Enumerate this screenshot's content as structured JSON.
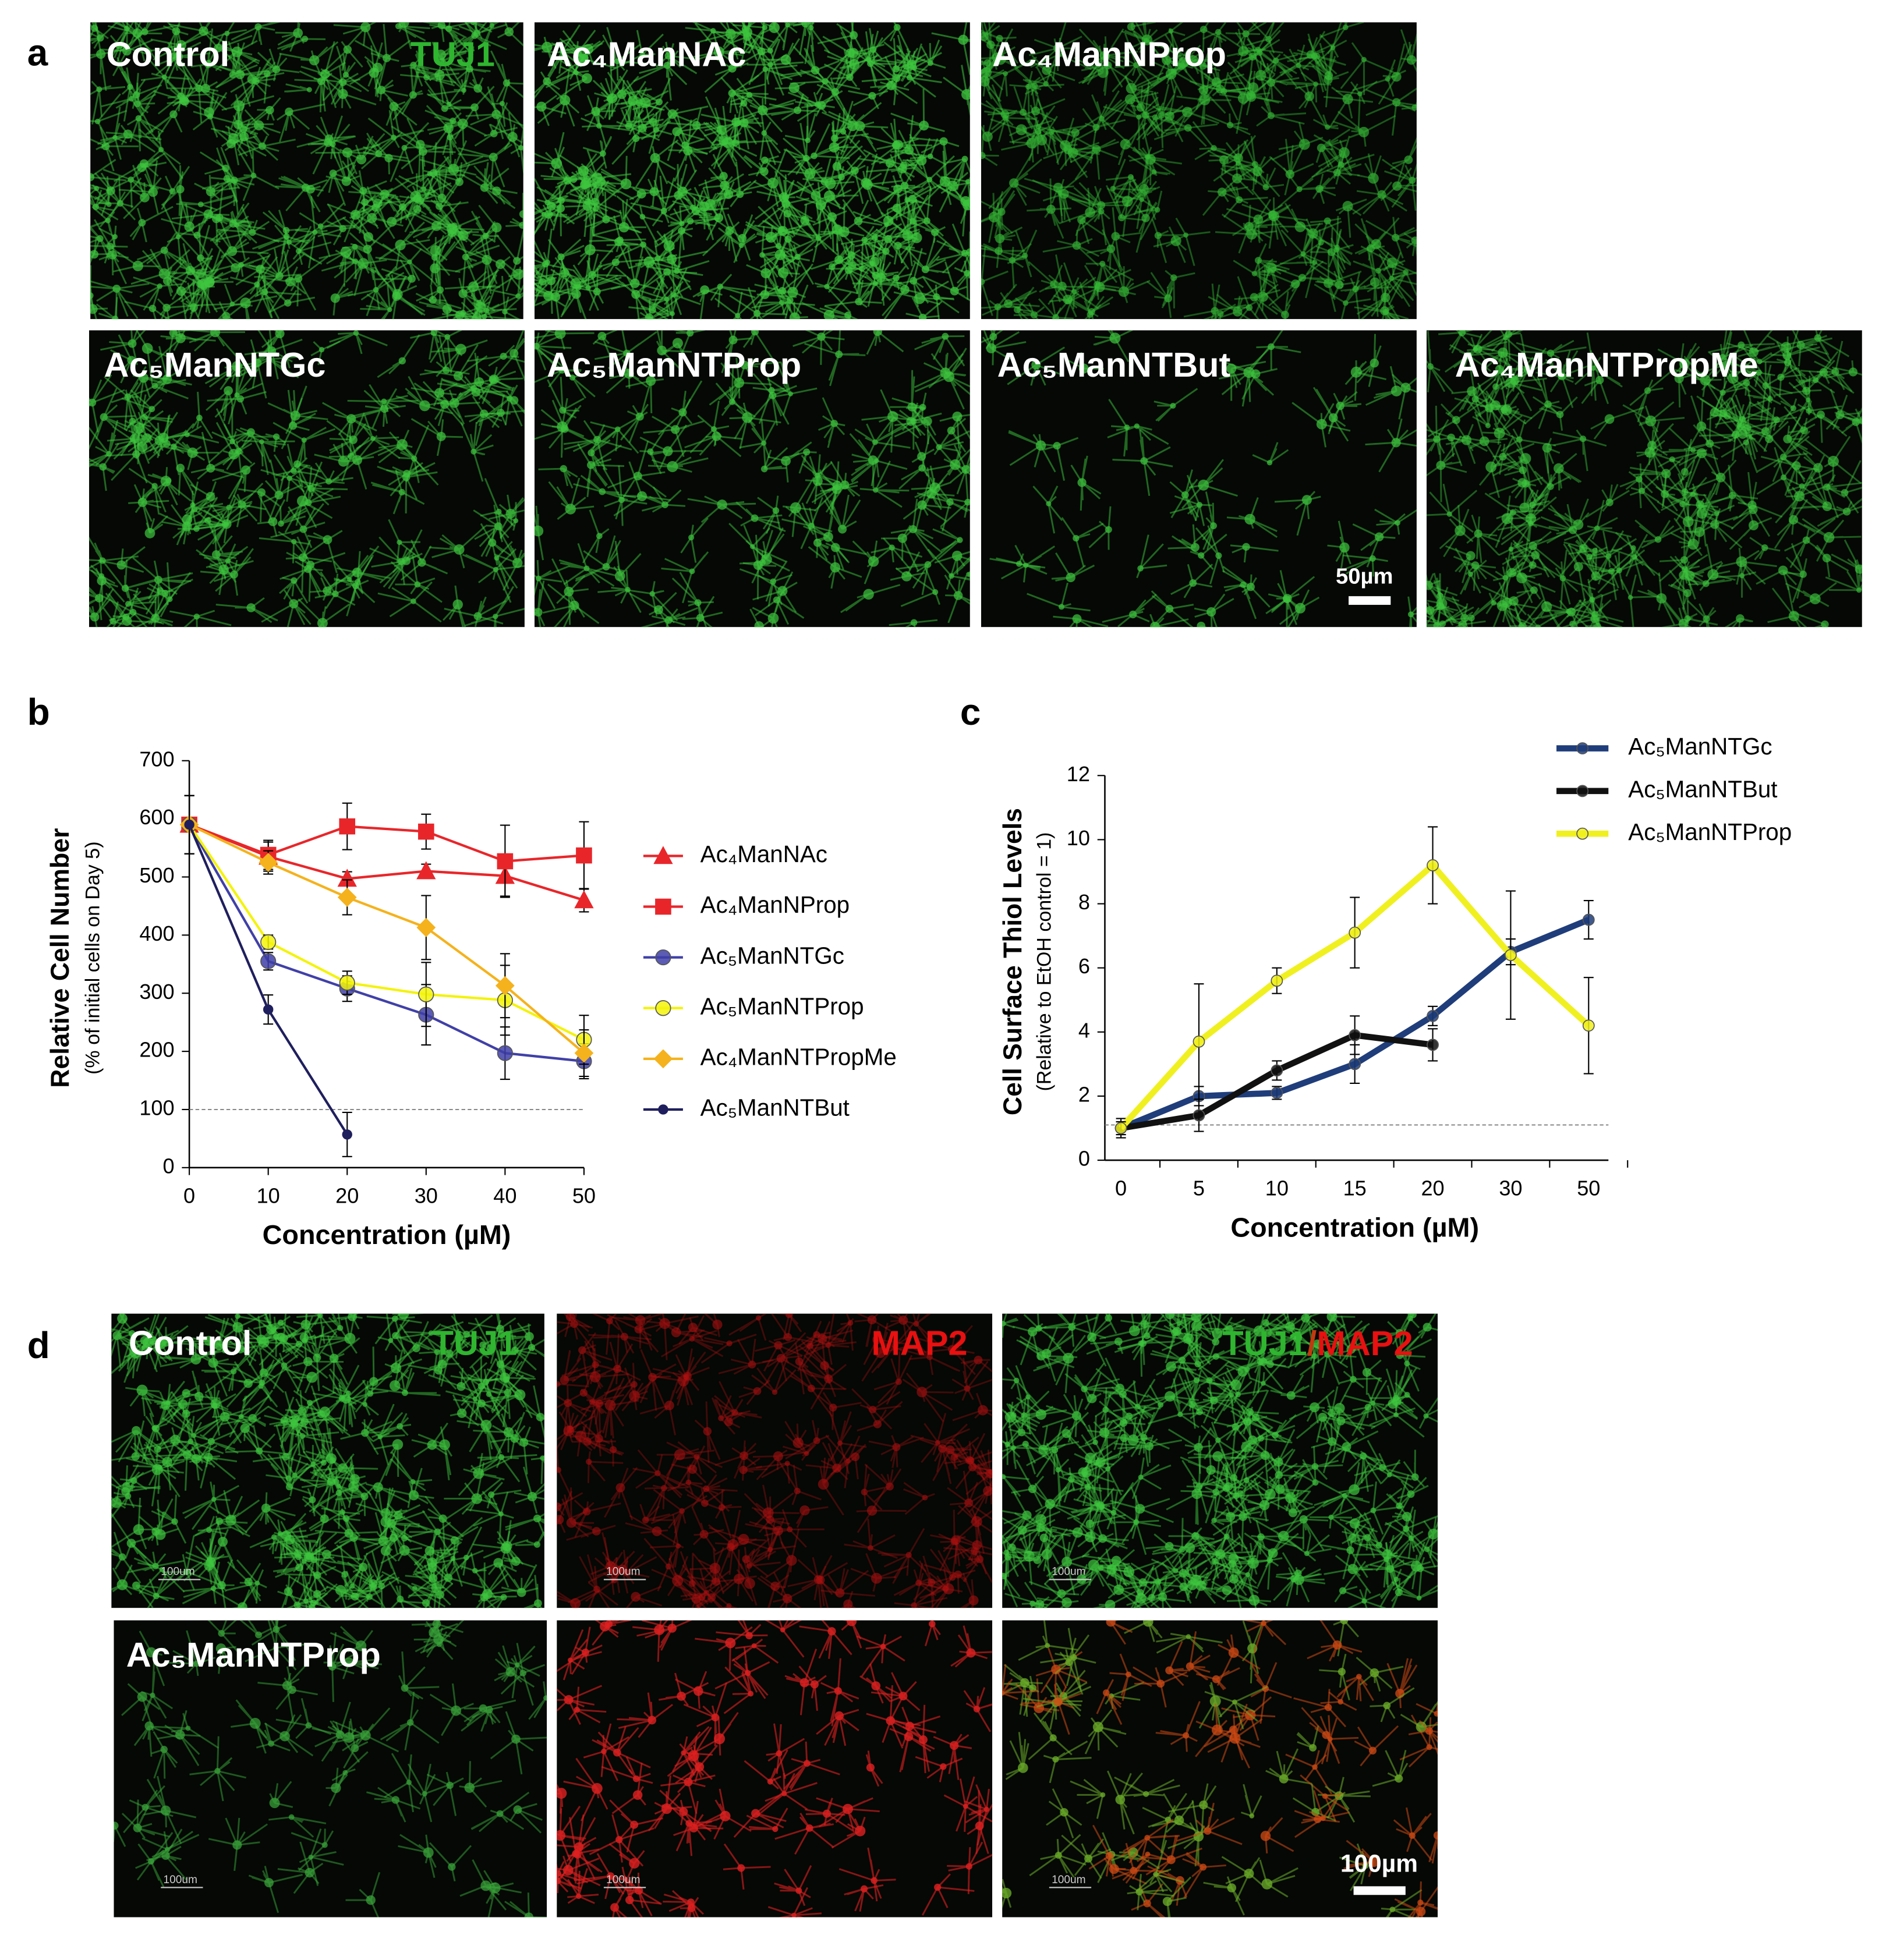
{
  "panel_labels": [
    "a",
    "b",
    "c",
    "d"
  ],
  "panel_a": {
    "labels": [
      "Control",
      "Ac₄ManNAc",
      "Ac₄ManNProp",
      "Ac₅ManNTGc",
      "Ac₅ManNTProp",
      "Ac₅ManNTBut",
      "Ac₄ManNTPropMe"
    ],
    "stain": "TUJ1",
    "scale_bar": "50µm"
  },
  "panel_d": {
    "row_labels": [
      "Control",
      "Ac₅ManNTProp"
    ],
    "stains": [
      "TUJ1",
      "MAP2"
    ],
    "merge": [
      "TUJ1",
      "/",
      "MAP2"
    ],
    "small_scale_labels": [
      "100um",
      "100um",
      "100um",
      "100um",
      "100um",
      "100um"
    ],
    "scale_bar": "100µm"
  },
  "chart_data": [
    {
      "type": "line",
      "y_label": "Relative Cell Number",
      "y_sublabel": "(% of initial cells on Day 5)",
      "x_label": "Concentration (µM)",
      "x": [
        0,
        10,
        20,
        30,
        40,
        50
      ],
      "xlim": [
        0,
        50
      ],
      "xticks": [
        0,
        10,
        20,
        30,
        40,
        50
      ],
      "ylim": [
        0,
        700
      ],
      "yticks": [
        0,
        100,
        200,
        300,
        400,
        500,
        600,
        700
      ],
      "reference_line": 100,
      "series": [
        {
          "name": "Ac₄ManNAc",
          "color": "#e8262a",
          "marker": "triangle",
          "values": [
            590,
            535,
            497,
            510,
            502,
            460
          ],
          "errors": [
            50,
            25,
            12,
            12,
            35,
            20
          ]
        },
        {
          "name": "Ac₄ManNProp",
          "color": "#e8262a",
          "marker": "square",
          "values": [
            590,
            538,
            587,
            578,
            527,
            537
          ],
          "errors": [
            50,
            25,
            40,
            30,
            62,
            58
          ]
        },
        {
          "name": "Ac₅ManNTGc",
          "color": "#4040a8",
          "marker": "circle",
          "values": [
            590,
            355,
            308,
            263,
            197,
            183
          ],
          "errors": [
            50,
            15,
            22,
            52,
            45,
            30
          ]
        },
        {
          "name": "Ac₅ManNTProp",
          "color": "#f3f30c",
          "marker": "circle",
          "values": [
            590,
            388,
            318,
            298,
            288,
            220
          ],
          "errors": [
            50,
            12,
            20,
            55,
            60,
            42
          ]
        },
        {
          "name": "Ac₄ManNTPropMe",
          "color": "#f5b21c",
          "marker": "diamond",
          "values": [
            590,
            525,
            465,
            413,
            313,
            197
          ],
          "errors": [
            50,
            20,
            30,
            55,
            55,
            40
          ]
        },
        {
          "name": "Ac₅ManNTBut",
          "color": "#1f1f5e",
          "marker": "small",
          "values": [
            590,
            272,
            57,
            null,
            null,
            null
          ],
          "errors": [
            50,
            25,
            38,
            null,
            null,
            null
          ]
        }
      ]
    },
    {
      "type": "line",
      "y_label": "Cell Surface Thiol Levels",
      "y_sublabel": "(Relative to EtOH control = 1)",
      "x_label": "Concentration (µM)",
      "categories": [
        "0",
        "5",
        "10",
        "15",
        "20",
        "30",
        "50"
      ],
      "ylim": [
        0,
        12
      ],
      "yticks": [
        0,
        2,
        4,
        6,
        8,
        10,
        12
      ],
      "reference_line": 1.1,
      "series": [
        {
          "name": "Ac₅ManNTGc",
          "color": "#1f3d7a",
          "marker": "circle",
          "values": [
            1,
            2,
            2.1,
            3,
            4.5,
            6.5,
            7.5
          ],
          "errors": [
            0.3,
            0.3,
            0.2,
            0.6,
            0.3,
            0.4,
            0.6
          ]
        },
        {
          "name": "Ac₅ManNTBut",
          "color": "#111111",
          "marker": "circle",
          "values": [
            1,
            1.4,
            2.8,
            3.9,
            3.6,
            null,
            null
          ],
          "errors": [
            0.2,
            0.5,
            0.3,
            0.6,
            0.5,
            null,
            null
          ]
        },
        {
          "name": "Ac₅ManNTProp",
          "color": "#f0f020",
          "marker": "circle",
          "values": [
            1,
            3.7,
            5.6,
            7.1,
            9.2,
            6.4,
            4.2
          ],
          "errors": [
            0.2,
            1.8,
            0.4,
            1.1,
            1.2,
            2.0,
            1.5
          ]
        }
      ]
    }
  ]
}
